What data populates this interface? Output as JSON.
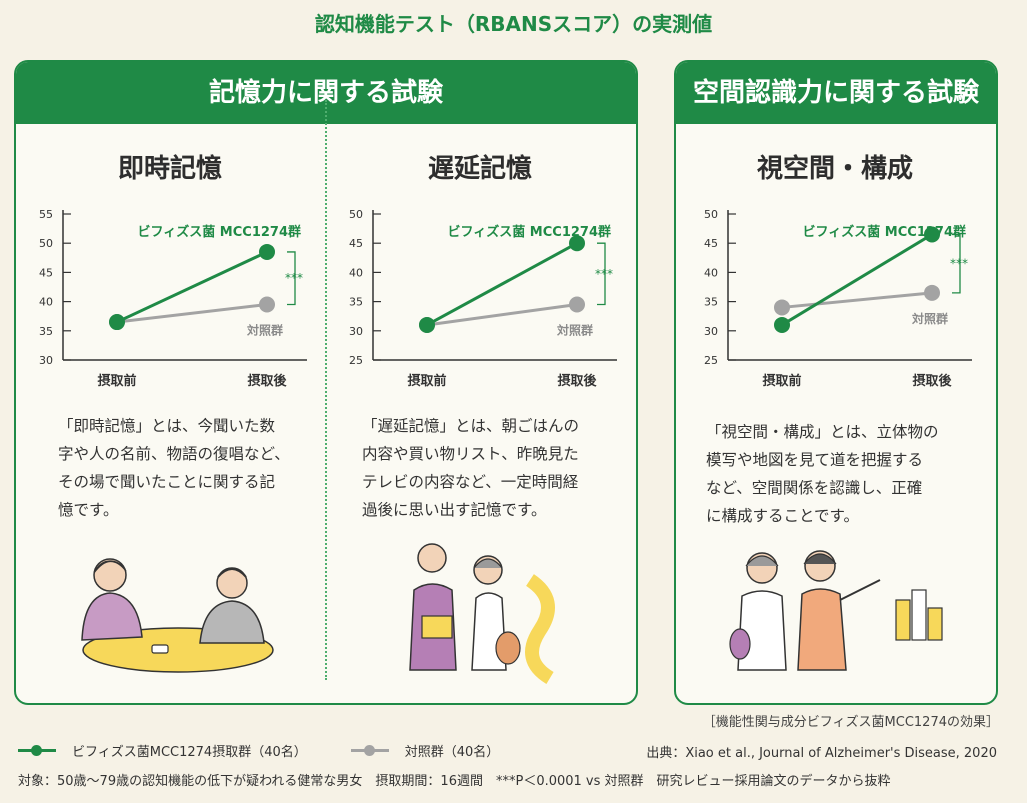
{
  "main_title": "認知機能テスト（RBANSスコア）の実測値",
  "panels": [
    {
      "header": "記憶力に関する試験"
    },
    {
      "header": "空間認識力に関する試験"
    }
  ],
  "colors": {
    "treatment": "#1f8a46",
    "control": "#a3a3a3",
    "accent": "#1f8a46",
    "panel_bg": "#fbfaf3",
    "page_bg": "#f6f2e6"
  },
  "chart_data": [
    {
      "type": "line",
      "title": "即時記憶",
      "categories": [
        "摂取前",
        "摂取後"
      ],
      "ylim": [
        30,
        55
      ],
      "yticks": [
        30,
        35,
        40,
        45,
        50,
        55
      ],
      "series": [
        {
          "name": "ビフィズス菌 MCC1274群",
          "values": [
            36.5,
            48.5
          ]
        },
        {
          "name": "対照群",
          "values": [
            36.5,
            39.5
          ]
        }
      ],
      "significance": "***",
      "description": [
        "「即時記憶」とは、今聞いた数",
        "字や人の名前、物語の復唱など、",
        "その場で聞いたことに関する記",
        "憶です。"
      ]
    },
    {
      "type": "line",
      "title": "遅延記憶",
      "categories": [
        "摂取前",
        "摂取後"
      ],
      "ylim": [
        25,
        50
      ],
      "yticks": [
        25,
        30,
        35,
        40,
        45,
        50
      ],
      "series": [
        {
          "name": "ビフィズス菌 MCC1274群",
          "values": [
            31,
            45
          ]
        },
        {
          "name": "対照群",
          "values": [
            31,
            34.5
          ]
        }
      ],
      "significance": "***",
      "description": [
        "「遅延記憶」とは、朝ごはんの",
        "内容や買い物リスト、昨晩見た",
        "テレビの内容など、一定時間経",
        "過後に思い出す記憶です。"
      ]
    },
    {
      "type": "line",
      "title": "視空間・構成",
      "categories": [
        "摂取前",
        "摂取後"
      ],
      "ylim": [
        25,
        50
      ],
      "yticks": [
        25,
        30,
        35,
        40,
        45,
        50
      ],
      "series": [
        {
          "name": "ビフィズス菌 MCC1274群",
          "values": [
            31,
            46.5
          ]
        },
        {
          "name": "対照群",
          "values": [
            34,
            36.5
          ]
        }
      ],
      "significance": "***",
      "description": [
        "「視空間・構成」とは、立体物の",
        "模写や地図を見て道を把握する",
        "など、空間関係を認識し、正確",
        "に構成することです。"
      ]
    }
  ],
  "source_note": "［機能性関与成分ビフィズス菌MCC1274の効果］",
  "legend": [
    {
      "label": "ビフィズス菌MCC1274摂取群（40名）"
    },
    {
      "label": "対照群（40名）"
    }
  ],
  "citation": "出典：Xiao et al., Journal of Alzheimer's Disease, 2020",
  "footnote": "対象：50歳〜79歳の認知機能の低下が疑われる健常な男女　摂取期間：16週間　***P＜0.0001 vs 対照群　研究レビュー採用論文のデータから抜粋"
}
